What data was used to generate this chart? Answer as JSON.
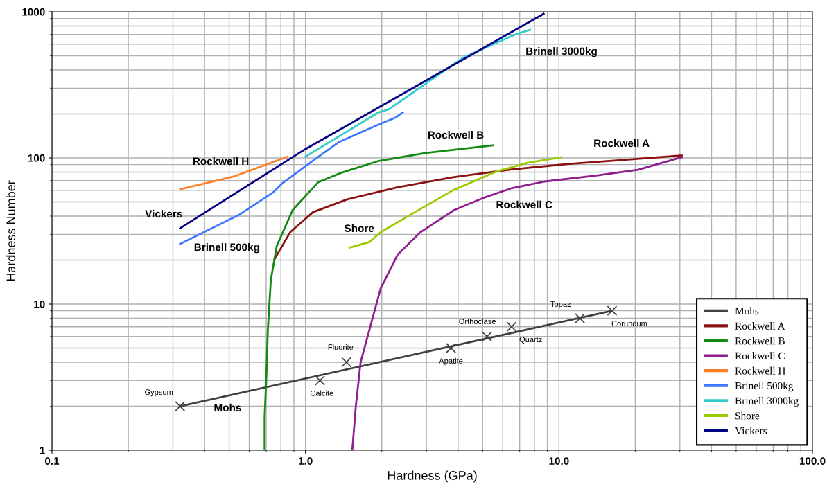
{
  "chart_data": {
    "type": "line",
    "xlabel": "Hardness (GPa)",
    "ylabel": "Hardness Number",
    "log": "xy",
    "xlim": [
      0.1,
      100
    ],
    "xticks": [
      {
        "value": 0.1,
        "label": "0.1"
      },
      {
        "value": 1,
        "label": "1.0"
      },
      {
        "value": 10,
        "label": "10.0"
      },
      {
        "value": 100,
        "label": "100.0"
      }
    ],
    "ylim": [
      1,
      1000
    ],
    "yticks": [
      1,
      10,
      100,
      1000
    ],
    "grid": true,
    "legend": "bottom right",
    "line_style": "solid",
    "series": [
      {
        "name": "Mohs",
        "color": "#404040",
        "x": [
          0.32,
          16.2
        ],
        "values": [
          2,
          9
        ]
      },
      {
        "name": "Rockwell A",
        "color": "#8b1010",
        "x": [
          0.755,
          0.87,
          1.07,
          1.46,
          2.31,
          3.86,
          6.5,
          10.8,
          18,
          30.5
        ],
        "values": [
          20.3,
          31,
          42.5,
          52,
          63,
          74,
          83.5,
          90.7,
          96.8,
          104
        ]
      },
      {
        "name": "Rockwell B",
        "color": "#138a13",
        "x": [
          0.69,
          0.69,
          0.7,
          0.71,
          0.73,
          0.77,
          0.89,
          1.12,
          1.38,
          1.93,
          2.98,
          5.5
        ],
        "values": [
          1,
          1.7,
          3,
          6.5,
          14.6,
          24.9,
          44,
          68,
          79,
          95,
          108,
          122
        ]
      },
      {
        "name": "Rockwell C",
        "color": "#8e1f8e",
        "x": [
          1.53,
          1.58,
          1.65,
          1.98,
          2.31,
          2.84,
          3.86,
          5.0,
          6.5,
          8.8,
          13.9,
          20.5,
          30.5
        ],
        "values": [
          1,
          2,
          4,
          12.8,
          21.8,
          31,
          44,
          53,
          62,
          69,
          75.7,
          83,
          101
        ]
      },
      {
        "name": "Rockwell H",
        "color": "#ff7f27",
        "x": [
          0.32,
          0.52,
          0.85
        ],
        "values": [
          61,
          74.5,
          102
        ]
      },
      {
        "name": "Brinell 500kg",
        "color": "#3b78ff",
        "x": [
          0.32,
          0.55,
          0.745,
          0.81,
          1.09,
          1.36,
          1.91,
          2.28,
          2.42
        ],
        "values": [
          25.8,
          41,
          58,
          67,
          98,
          129,
          167,
          190,
          205
        ]
      },
      {
        "name": "Brinell 3000kg",
        "color": "#33cccc",
        "x": [
          1.0,
          1.94,
          2.13,
          4.2,
          6.8,
          7.7
        ],
        "values": [
          102,
          205,
          215,
          487,
          705,
          753
        ]
      },
      {
        "name": "Shore",
        "color": "#99cc00",
        "x": [
          1.49,
          1.79,
          1.98,
          2.7,
          3.86,
          5.7,
          7.5,
          10.2
        ],
        "values": [
          24.3,
          26.6,
          31,
          42.5,
          60.6,
          81,
          92.5,
          101
        ]
      },
      {
        "name": "Vickers",
        "color": "#000080",
        "x": [
          0.32,
          1.0,
          8.7
        ],
        "values": [
          33,
          115,
          968
        ]
      },
      {
        "type": "scatter",
        "marker": "cross",
        "color": "#404040",
        "x": [
          0.32,
          1.14,
          1.45,
          3.75,
          5.2,
          6.5,
          12.1,
          16.2
        ],
        "values": [
          2,
          3,
          4,
          5,
          6,
          7,
          8,
          9
        ]
      }
    ],
    "annotations": [
      {
        "text": "Gypsum",
        "x": 0.32,
        "y": 2
      },
      {
        "text": "Calcite",
        "x": 1.14,
        "y": 3
      },
      {
        "text": "Fluorite",
        "x": 1.45,
        "y": 4
      },
      {
        "text": "Apatite",
        "x": 3.75,
        "y": 5
      },
      {
        "text": "Orthoclase",
        "x": 5.2,
        "y": 6
      },
      {
        "text": "Quartz",
        "x": 6.5,
        "y": 7
      },
      {
        "text": "Topaz",
        "x": 12.1,
        "y": 8
      },
      {
        "text": "Corundum",
        "x": 16.2,
        "y": 9
      },
      "Mohs",
      "Brinell 3000kg",
      "Rockwell B",
      "Rockwell A",
      "Rockwell H",
      "Vickers",
      "Brinell 500kg",
      "Shore",
      "Rockwell C"
    ]
  }
}
